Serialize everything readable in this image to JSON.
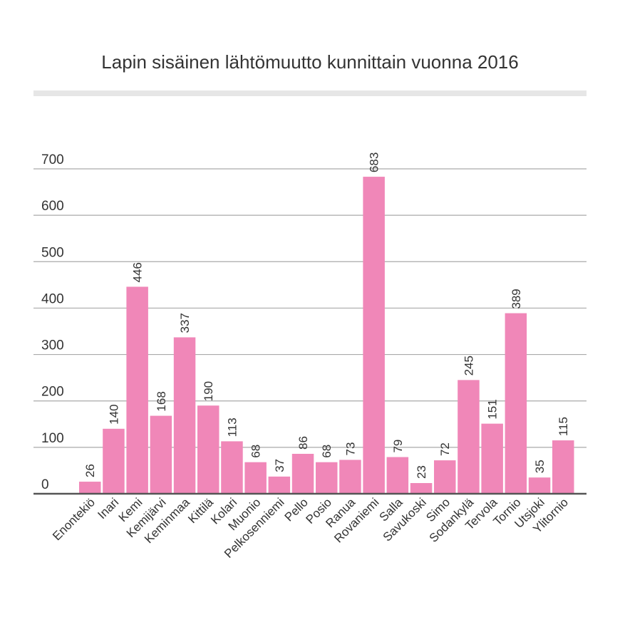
{
  "chart_data": {
    "type": "bar",
    "title": "Lapin sisäinen lähtömuutto kunnittain vuonna 2016",
    "xlabel": "",
    "ylabel": "",
    "ylim": [
      0,
      700
    ],
    "yticks": [
      0,
      100,
      200,
      300,
      400,
      500,
      600,
      700
    ],
    "grid": true,
    "categories": [
      "Enontekiö",
      "Inari",
      "Kemi",
      "Kemijärvi",
      "Keminmaa",
      "Kittilä",
      "Kolari",
      "Muonio",
      "Pelkosenniemi",
      "Pello",
      "Posio",
      "Ranua",
      "Rovaniemi",
      "Salla",
      "Savukoski",
      "Simo",
      "Sodankylä",
      "Tervola",
      "Tornio",
      "Utsjoki",
      "Ylitornio"
    ],
    "values": [
      26,
      140,
      446,
      168,
      337,
      190,
      113,
      68,
      37,
      86,
      68,
      73,
      683,
      79,
      23,
      72,
      245,
      151,
      389,
      35,
      115
    ],
    "data_labels": [
      "26",
      "140",
      "446",
      "168",
      "337",
      "190",
      "113",
      "68",
      "37",
      "86",
      "68",
      "73",
      "683",
      "79",
      "23",
      "72",
      "245",
      "151",
      "389",
      "35",
      "115"
    ],
    "colors": {
      "bar": "#f087b8",
      "gridline": "#aaaaaa",
      "baseline": "#555555",
      "title_rule": "#e6e6e6",
      "text": "#333333"
    }
  }
}
